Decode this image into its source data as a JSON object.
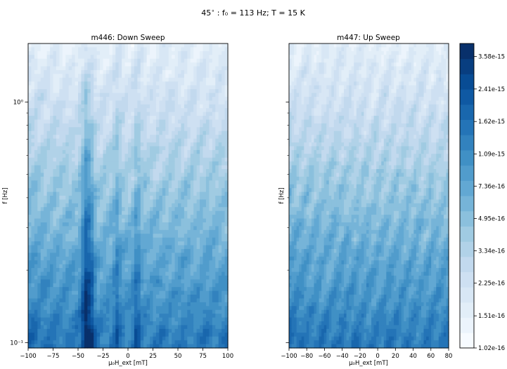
{
  "chart_data": {
    "type": "heatmap",
    "suptitle_prefix": "45",
    "suptitle_deg": "∘",
    "suptitle_rest": " : f₀ = 113 Hz; T = 15 K",
    "ylabel": "f [Hz]",
    "y_scale": "log",
    "ylim": [
      0.095,
      1.75
    ],
    "yticks": [
      {
        "value": 0.1,
        "label": "10⁻¹"
      },
      {
        "value": 1.0,
        "label": "10⁰"
      }
    ],
    "panels": [
      {
        "title": "m446: Down Sweep",
        "xlabel": "μ₀H_ext [mT]",
        "xlim": [
          -100,
          100
        ],
        "xticks": [
          -100,
          -75,
          -50,
          -25,
          0,
          25,
          50,
          75,
          100
        ],
        "features": [
          {
            "center": -42,
            "width": 4.5,
            "strength": 3.2
          },
          {
            "center": -36,
            "width": 3.5,
            "strength": 1.6
          },
          {
            "center": -11,
            "width": 3.5,
            "strength": 1.3
          },
          {
            "center": 9,
            "width": 3.5,
            "strength": 1.4
          }
        ]
      },
      {
        "title": "m447: Up Sweep",
        "xlabel": "μ₀H_ext [mT]",
        "xlim": [
          -100,
          80
        ],
        "xticks": [
          -100,
          -80,
          -60,
          -40,
          -20,
          0,
          20,
          40,
          60,
          80
        ],
        "features": []
      }
    ],
    "colorbar": {
      "min": 1.02e-16,
      "max": 4.2e-15,
      "levels": 20,
      "tick_labels": [
        "3.58e-15",
        "2.41e-15",
        "1.62e-15",
        "1.09e-15",
        "7.36e-16",
        "4.95e-16",
        "3.34e-16",
        "2.25e-16",
        "1.51e-16",
        "1.02e-16"
      ],
      "colormap": [
        "#f7fbff",
        "#deebf7",
        "#c6dbef",
        "#9ecae1",
        "#6baed6",
        "#4292c6",
        "#2171b5",
        "#08519c",
        "#08306b"
      ]
    }
  }
}
